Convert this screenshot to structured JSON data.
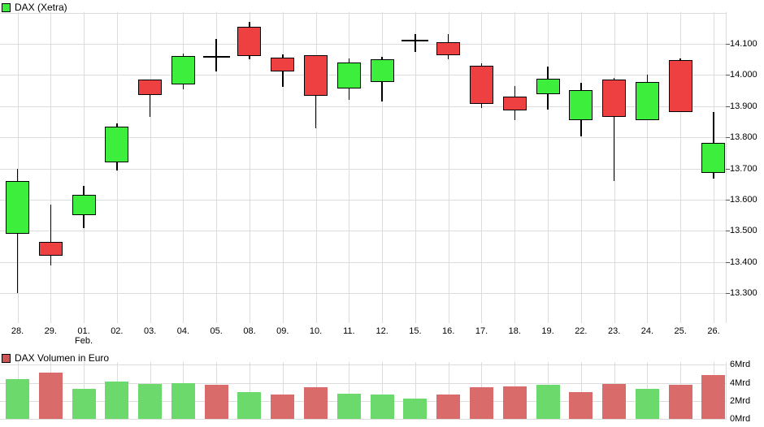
{
  "legend": {
    "price": "DAX (Xetra)",
    "volume": "DAX Volumen in Euro"
  },
  "colors": {
    "candle_up": "#3dee3d",
    "candle_down": "#ee4040",
    "candle_border": "#000000",
    "doji": "#000000",
    "volume_up": "#6cd96c",
    "volume_down": "#d96b6b",
    "legend_price_swatch": "#3dee3d",
    "legend_volume_swatch": "#cd5555",
    "grid": "#dcdcdc"
  },
  "chart_data": [
    {
      "type": "candlestick",
      "title": "DAX (Xetra)",
      "categories": [
        "28.",
        "29.",
        "01.",
        "02.",
        "03.",
        "04.",
        "05.",
        "08.",
        "09.",
        "10.",
        "11.",
        "12.",
        "15.",
        "16.",
        "17.",
        "18.",
        "19.",
        "22.",
        "23.",
        "24.",
        "25.",
        "26."
      ],
      "month_label": {
        "under_category": "01.",
        "label": "Feb."
      },
      "points": [
        {
          "date": "28.",
          "open": 13490,
          "high": 13700,
          "low": 13300,
          "close": 13660,
          "direction": "up"
        },
        {
          "date": "29.",
          "open": 13465,
          "high": 13585,
          "low": 13390,
          "close": 13420,
          "direction": "down"
        },
        {
          "date": "01.",
          "open": 13550,
          "high": 13645,
          "low": 13510,
          "close": 13615,
          "direction": "up"
        },
        {
          "date": "02.",
          "open": 13720,
          "high": 13845,
          "low": 13695,
          "close": 13835,
          "direction": "up"
        },
        {
          "date": "03.",
          "open": 13985,
          "high": 13985,
          "low": 13865,
          "close": 13935,
          "direction": "down"
        },
        {
          "date": "04.",
          "open": 13970,
          "high": 14070,
          "low": 13955,
          "close": 14060,
          "direction": "up"
        },
        {
          "date": "05.",
          "open": 14058,
          "high": 14115,
          "low": 14011,
          "close": 14058,
          "direction": "flat"
        },
        {
          "date": "08.",
          "open": 14155,
          "high": 14170,
          "low": 14050,
          "close": 14062,
          "direction": "down"
        },
        {
          "date": "09.",
          "open": 14056,
          "high": 14067,
          "low": 13963,
          "close": 14011,
          "direction": "down"
        },
        {
          "date": "10.",
          "open": 14064,
          "high": 14064,
          "low": 13828,
          "close": 13933,
          "direction": "down"
        },
        {
          "date": "11.",
          "open": 13956,
          "high": 14054,
          "low": 13920,
          "close": 14041,
          "direction": "up"
        },
        {
          "date": "12.",
          "open": 13978,
          "high": 14058,
          "low": 13915,
          "close": 14050,
          "direction": "up"
        },
        {
          "date": "15.",
          "open": 14110,
          "high": 14132,
          "low": 14073,
          "close": 14110,
          "direction": "flat"
        },
        {
          "date": "16.",
          "open": 14104,
          "high": 14130,
          "low": 14051,
          "close": 14064,
          "direction": "down"
        },
        {
          "date": "17.",
          "open": 14030,
          "high": 14038,
          "low": 13895,
          "close": 13907,
          "direction": "down"
        },
        {
          "date": "18.",
          "open": 13930,
          "high": 13965,
          "low": 13854,
          "close": 13887,
          "direction": "down"
        },
        {
          "date": "19.",
          "open": 13939,
          "high": 14026,
          "low": 13889,
          "close": 13989,
          "direction": "up"
        },
        {
          "date": "22.",
          "open": 13854,
          "high": 13976,
          "low": 13802,
          "close": 13952,
          "direction": "up"
        },
        {
          "date": "23.",
          "open": 13985,
          "high": 13991,
          "low": 13661,
          "close": 13865,
          "direction": "down"
        },
        {
          "date": "24.",
          "open": 13854,
          "high": 14000,
          "low": 13854,
          "close": 13978,
          "direction": "up"
        },
        {
          "date": "25.",
          "open": 14047,
          "high": 14052,
          "low": 13880,
          "close": 13880,
          "direction": "down"
        },
        {
          "date": "26.",
          "open": 13685,
          "high": 13882,
          "low": 13668,
          "close": 13782,
          "direction": "up"
        }
      ],
      "yticks": [
        {
          "value": 14100,
          "label": "14.100"
        },
        {
          "value": 14000,
          "label": "14.000"
        },
        {
          "value": 13900,
          "label": "13.900"
        },
        {
          "value": 13800,
          "label": "13.800"
        },
        {
          "value": 13700,
          "label": "13.700"
        },
        {
          "value": 13600,
          "label": "13.600"
        },
        {
          "value": 13500,
          "label": "13.500"
        },
        {
          "value": 13400,
          "label": "13.400"
        },
        {
          "value": 13300,
          "label": "13.300"
        }
      ],
      "ylim": [
        13220,
        14205
      ],
      "grid": true,
      "axis_side": "right"
    },
    {
      "type": "bar",
      "title": "DAX Volumen in Euro",
      "unit": "Mrd",
      "categories": [
        "28.",
        "29.",
        "01.",
        "02.",
        "03.",
        "04.",
        "05.",
        "08.",
        "09.",
        "10.",
        "11.",
        "12.",
        "15.",
        "16.",
        "17.",
        "18.",
        "19.",
        "22.",
        "23.",
        "24.",
        "25.",
        "26."
      ],
      "values": [
        4.4,
        5.1,
        3.3,
        4.1,
        3.9,
        4.0,
        3.8,
        3.0,
        2.7,
        3.5,
        2.8,
        2.7,
        2.3,
        2.7,
        3.5,
        3.6,
        3.8,
        3.0,
        3.9,
        3.3,
        3.8,
        4.9
      ],
      "bar_colors": [
        "up",
        "down",
        "up",
        "up",
        "up",
        "up",
        "down",
        "up",
        "down",
        "down",
        "up",
        "up",
        "up",
        "down",
        "down",
        "down",
        "up",
        "down",
        "down",
        "up",
        "down",
        "down"
      ],
      "yticks": [
        {
          "value": 6,
          "label": "6Mrd"
        },
        {
          "value": 4,
          "label": "4Mrd"
        },
        {
          "value": 2,
          "label": "2Mrd"
        },
        {
          "value": 0,
          "label": "0Mrd"
        }
      ],
      "ylim": [
        0,
        6.3
      ],
      "grid": true,
      "axis_side": "right"
    }
  ]
}
